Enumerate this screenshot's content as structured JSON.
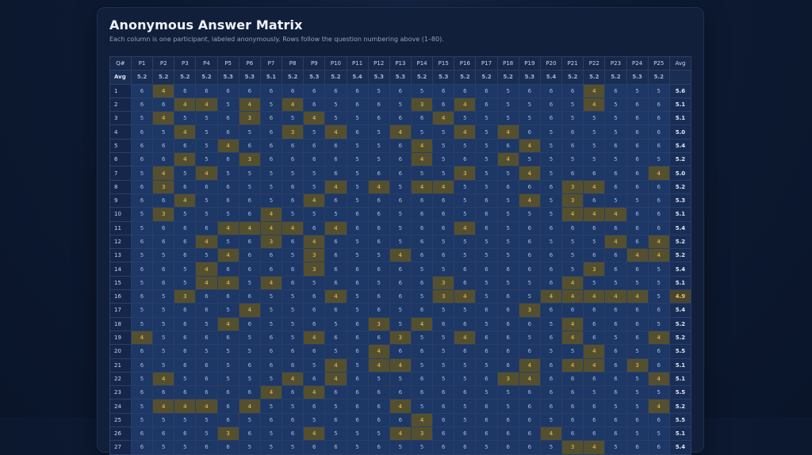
{
  "page": {
    "title": "Anonymous Answer Matrix",
    "subtitle": "Each column is one participant, labeled anonymously. Rows follow the question numbering above (1–80)."
  },
  "colors": {
    "background": "#0b1730",
    "card": "#111f3a",
    "cell": "#1d3766",
    "low_cell": "#54502f",
    "low_text": "#f0c35a"
  },
  "matrix": {
    "corner_label": "Q#",
    "avg_col_label": "Avg",
    "avg_row_label": "Avg",
    "participants": [
      "P1",
      "P2",
      "P3",
      "P4",
      "P5",
      "P6",
      "P7",
      "P8",
      "P9",
      "P10",
      "P11",
      "P12",
      "P13",
      "P14",
      "P15",
      "P16",
      "P17",
      "P18",
      "P19",
      "P20",
      "P21",
      "P22",
      "P23",
      "P24",
      "P25"
    ],
    "participant_avgs": [
      "5.2",
      "5.2",
      "5.2",
      "5.2",
      "5.3",
      "5.3",
      "5.1",
      "5.2",
      "5.3",
      "5.2",
      "5.4",
      "5.3",
      "5.3",
      "5.2",
      "5.3",
      "5.2",
      "5.2",
      "5.2",
      "5.3",
      "5.4",
      "5.2",
      "5.2",
      "5.2",
      "5.3",
      "5.2"
    ],
    "rows": [
      {
        "q": "1",
        "values": [
          "6",
          "4",
          "6",
          "6",
          "6",
          "6",
          "6",
          "6",
          "6",
          "6",
          "6",
          "5",
          "6",
          "5",
          "6",
          "6",
          "6",
          "5",
          "6",
          "6",
          "6",
          "4",
          "6",
          "5",
          "5"
        ],
        "avg": "5.6"
      },
      {
        "q": "2",
        "values": [
          "6",
          "6",
          "4",
          "4",
          "5",
          "4",
          "5",
          "4",
          "6",
          "5",
          "6",
          "6",
          "5",
          "3",
          "6",
          "4",
          "6",
          "5",
          "5",
          "6",
          "5",
          "4",
          "5",
          "6",
          "6"
        ],
        "avg": "5.1"
      },
      {
        "q": "3",
        "values": [
          "5",
          "4",
          "5",
          "5",
          "6",
          "3",
          "6",
          "5",
          "4",
          "5",
          "5",
          "6",
          "6",
          "6",
          "4",
          "5",
          "5",
          "5",
          "5",
          "6",
          "5",
          "5",
          "5",
          "6",
          "6"
        ],
        "avg": "5.1"
      },
      {
        "q": "4",
        "values": [
          "6",
          "5",
          "4",
          "5",
          "6",
          "5",
          "6",
          "3",
          "5",
          "4",
          "6",
          "5",
          "4",
          "5",
          "5",
          "4",
          "5",
          "4",
          "6",
          "5",
          "6",
          "5",
          "5",
          "6",
          "6"
        ],
        "avg": "5.0"
      },
      {
        "q": "5",
        "values": [
          "6",
          "6",
          "6",
          "5",
          "4",
          "6",
          "6",
          "6",
          "6",
          "6",
          "5",
          "5",
          "6",
          "4",
          "5",
          "5",
          "5",
          "6",
          "4",
          "5",
          "6",
          "5",
          "6",
          "6",
          "6"
        ],
        "avg": "5.4"
      },
      {
        "q": "6",
        "values": [
          "6",
          "6",
          "4",
          "5",
          "6",
          "3",
          "6",
          "6",
          "6",
          "6",
          "5",
          "5",
          "6",
          "4",
          "5",
          "6",
          "5",
          "4",
          "5",
          "5",
          "5",
          "5",
          "5",
          "6",
          "5"
        ],
        "avg": "5.2"
      },
      {
        "q": "7",
        "values": [
          "5",
          "4",
          "5",
          "4",
          "5",
          "5",
          "5",
          "5",
          "5",
          "6",
          "5",
          "6",
          "6",
          "5",
          "5",
          "3",
          "5",
          "5",
          "4",
          "5",
          "6",
          "6",
          "6",
          "6",
          "4"
        ],
        "avg": "5.0"
      },
      {
        "q": "8",
        "values": [
          "6",
          "3",
          "6",
          "6",
          "6",
          "5",
          "5",
          "6",
          "5",
          "4",
          "5",
          "4",
          "5",
          "4",
          "4",
          "5",
          "5",
          "6",
          "6",
          "6",
          "3",
          "4",
          "6",
          "6",
          "6"
        ],
        "avg": "5.2"
      },
      {
        "q": "9",
        "values": [
          "6",
          "6",
          "4",
          "5",
          "6",
          "6",
          "5",
          "6",
          "4",
          "6",
          "5",
          "6",
          "6",
          "6",
          "6",
          "5",
          "6",
          "5",
          "4",
          "5",
          "3",
          "6",
          "5",
          "5",
          "6"
        ],
        "avg": "5.3"
      },
      {
        "q": "10",
        "values": [
          "5",
          "3",
          "5",
          "5",
          "5",
          "6",
          "4",
          "5",
          "5",
          "5",
          "6",
          "6",
          "5",
          "6",
          "6",
          "5",
          "6",
          "5",
          "5",
          "5",
          "4",
          "4",
          "4",
          "6",
          "6"
        ],
        "avg": "5.1"
      },
      {
        "q": "11",
        "values": [
          "5",
          "6",
          "6",
          "6",
          "4",
          "4",
          "4",
          "4",
          "6",
          "4",
          "6",
          "6",
          "5",
          "6",
          "6",
          "4",
          "6",
          "5",
          "6",
          "6",
          "6",
          "6",
          "6",
          "6",
          "6"
        ],
        "avg": "5.4"
      },
      {
        "q": "12",
        "values": [
          "6",
          "6",
          "6",
          "4",
          "5",
          "6",
          "3",
          "6",
          "4",
          "6",
          "5",
          "6",
          "5",
          "6",
          "5",
          "5",
          "5",
          "5",
          "6",
          "5",
          "5",
          "5",
          "4",
          "6",
          "4"
        ],
        "avg": "5.2"
      },
      {
        "q": "13",
        "values": [
          "5",
          "5",
          "6",
          "5",
          "4",
          "6",
          "6",
          "5",
          "3",
          "6",
          "5",
          "5",
          "4",
          "6",
          "6",
          "5",
          "5",
          "5",
          "6",
          "6",
          "5",
          "6",
          "6",
          "4",
          "4"
        ],
        "avg": "5.2"
      },
      {
        "q": "14",
        "values": [
          "6",
          "6",
          "5",
          "4",
          "6",
          "6",
          "6",
          "6",
          "3",
          "6",
          "6",
          "6",
          "6",
          "5",
          "5",
          "6",
          "6",
          "6",
          "6",
          "6",
          "5",
          "3",
          "6",
          "6",
          "5"
        ],
        "avg": "5.4"
      },
      {
        "q": "15",
        "values": [
          "5",
          "6",
          "5",
          "4",
          "4",
          "5",
          "4",
          "6",
          "5",
          "6",
          "6",
          "5",
          "6",
          "6",
          "3",
          "6",
          "5",
          "5",
          "5",
          "6",
          "4",
          "5",
          "5",
          "5",
          "5"
        ],
        "avg": "5.1"
      },
      {
        "q": "16",
        "values": [
          "6",
          "5",
          "3",
          "6",
          "6",
          "6",
          "5",
          "5",
          "6",
          "4",
          "5",
          "6",
          "6",
          "5",
          "3",
          "4",
          "5",
          "6",
          "5",
          "4",
          "4",
          "4",
          "4",
          "4",
          "5"
        ],
        "avg": "4.9"
      },
      {
        "q": "17",
        "values": [
          "5",
          "5",
          "6",
          "6",
          "5",
          "4",
          "5",
          "5",
          "6",
          "6",
          "5",
          "6",
          "5",
          "6",
          "5",
          "5",
          "6",
          "6",
          "3",
          "6",
          "6",
          "6",
          "6",
          "6",
          "6"
        ],
        "avg": "5.4"
      },
      {
        "q": "18",
        "values": [
          "5",
          "5",
          "6",
          "5",
          "4",
          "6",
          "5",
          "5",
          "6",
          "5",
          "6",
          "3",
          "5",
          "4",
          "6",
          "6",
          "5",
          "6",
          "6",
          "5",
          "4",
          "6",
          "6",
          "6",
          "5"
        ],
        "avg": "5.2"
      },
      {
        "q": "19",
        "values": [
          "4",
          "5",
          "6",
          "6",
          "6",
          "5",
          "6",
          "5",
          "4",
          "6",
          "6",
          "6",
          "3",
          "5",
          "5",
          "4",
          "6",
          "6",
          "5",
          "6",
          "4",
          "6",
          "5",
          "6",
          "4"
        ],
        "avg": "5.2"
      },
      {
        "q": "20",
        "values": [
          "6",
          "5",
          "6",
          "5",
          "5",
          "5",
          "6",
          "6",
          "6",
          "5",
          "6",
          "4",
          "6",
          "6",
          "5",
          "6",
          "6",
          "6",
          "6",
          "5",
          "5",
          "4",
          "6",
          "5",
          "6"
        ],
        "avg": "5.5"
      },
      {
        "q": "21",
        "values": [
          "6",
          "5",
          "6",
          "6",
          "5",
          "6",
          "6",
          "6",
          "5",
          "4",
          "5",
          "4",
          "4",
          "5",
          "5",
          "5",
          "5",
          "6",
          "4",
          "6",
          "4",
          "4",
          "6",
          "3",
          "6"
        ],
        "avg": "5.1"
      },
      {
        "q": "22",
        "values": [
          "5",
          "4",
          "5",
          "6",
          "5",
          "5",
          "5",
          "4",
          "6",
          "4",
          "6",
          "5",
          "5",
          "6",
          "5",
          "5",
          "6",
          "3",
          "4",
          "6",
          "6",
          "6",
          "6",
          "5",
          "4"
        ],
        "avg": "5.1"
      },
      {
        "q": "23",
        "values": [
          "6",
          "6",
          "6",
          "6",
          "6",
          "6",
          "4",
          "6",
          "4",
          "6",
          "6",
          "6",
          "6",
          "6",
          "6",
          "6",
          "5",
          "5",
          "6",
          "6",
          "6",
          "5",
          "6",
          "5",
          "5"
        ],
        "avg": "5.5"
      },
      {
        "q": "24",
        "values": [
          "5",
          "4",
          "4",
          "4",
          "6",
          "4",
          "5",
          "5",
          "6",
          "5",
          "6",
          "6",
          "4",
          "5",
          "6",
          "5",
          "6",
          "5",
          "6",
          "6",
          "6",
          "6",
          "5",
          "5",
          "4"
        ],
        "avg": "5.2"
      },
      {
        "q": "25",
        "values": [
          "5",
          "5",
          "5",
          "5",
          "6",
          "5",
          "6",
          "6",
          "5",
          "6",
          "6",
          "6",
          "6",
          "4",
          "6",
          "5",
          "6",
          "6",
          "6",
          "5",
          "6",
          "6",
          "6",
          "6",
          "6"
        ],
        "avg": "5.5"
      },
      {
        "q": "26",
        "values": [
          "6",
          "6",
          "6",
          "5",
          "3",
          "6",
          "5",
          "6",
          "4",
          "5",
          "5",
          "5",
          "4",
          "3",
          "6",
          "6",
          "6",
          "6",
          "6",
          "4",
          "6",
          "6",
          "6",
          "5",
          "5"
        ],
        "avg": "5.1"
      },
      {
        "q": "27",
        "values": [
          "6",
          "5",
          "5",
          "6",
          "6",
          "5",
          "5",
          "5",
          "6",
          "6",
          "5",
          "6",
          "5",
          "5",
          "6",
          "6",
          "5",
          "6",
          "6",
          "5",
          "3",
          "4",
          "5",
          "6",
          "6"
        ],
        "avg": "5.4"
      }
    ]
  }
}
